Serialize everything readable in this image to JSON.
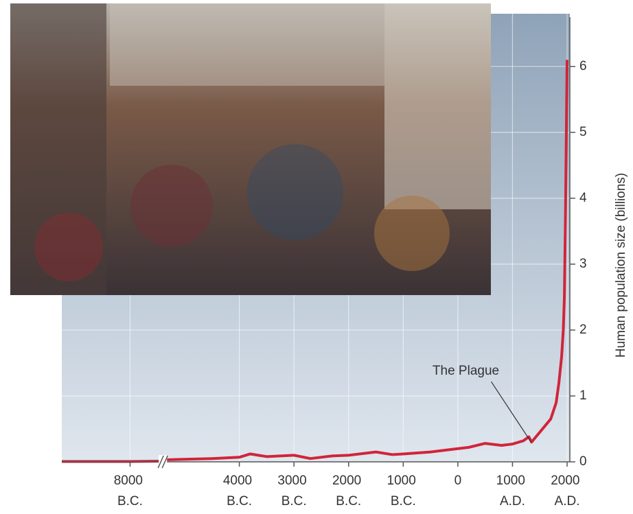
{
  "chart_data": {
    "type": "line",
    "y_axis_label": "Human population size (billions)",
    "x": [
      -9250,
      -8000,
      -7400,
      -5400,
      -4500,
      -4000,
      -3800,
      -3500,
      -3000,
      -2700,
      -2300,
      -2000,
      -1500,
      -1200,
      -1000,
      -500,
      0,
      200,
      500,
      800,
      1000,
      1200,
      1300,
      1350,
      1400,
      1500,
      1600,
      1700,
      1800,
      1850,
      1900,
      1930,
      1950,
      1970,
      1990,
      2000
    ],
    "series": [
      {
        "name": "Human population",
        "color": "#d0253a",
        "values": [
          0.005,
          0.005,
          0.01,
          0.03,
          0.05,
          0.07,
          0.12,
          0.08,
          0.1,
          0.05,
          0.09,
          0.1,
          0.15,
          0.11,
          0.12,
          0.15,
          0.2,
          0.22,
          0.28,
          0.25,
          0.27,
          0.32,
          0.38,
          0.3,
          0.35,
          0.45,
          0.55,
          0.65,
          0.9,
          1.2,
          1.6,
          2.0,
          2.5,
          3.7,
          5.3,
          6.1
        ]
      }
    ],
    "xlim": [
      -9250,
      2050
    ],
    "x_break": [
      -7400,
      -5400
    ],
    "xticks": [
      {
        "value": -8000,
        "label": "8000 B.C."
      },
      {
        "value": -4000,
        "label": "4000 B.C."
      },
      {
        "value": -3000,
        "label": "3000 B.C."
      },
      {
        "value": -2000,
        "label": "2000 B.C."
      },
      {
        "value": -1000,
        "label": "1000 B.C."
      },
      0,
      {
        "value": 1000,
        "label": "1000 A.D."
      },
      {
        "value": 2000,
        "label": "2000 A.D."
      }
    ],
    "ylim": [
      0,
      6.8
    ],
    "yticks": [
      0,
      1,
      2,
      3,
      4,
      5,
      6
    ],
    "y_axis_side": "right",
    "grid": true,
    "annotations": [
      {
        "text": "The Plague",
        "x": 1340,
        "y": 0.3
      }
    ]
  }
}
